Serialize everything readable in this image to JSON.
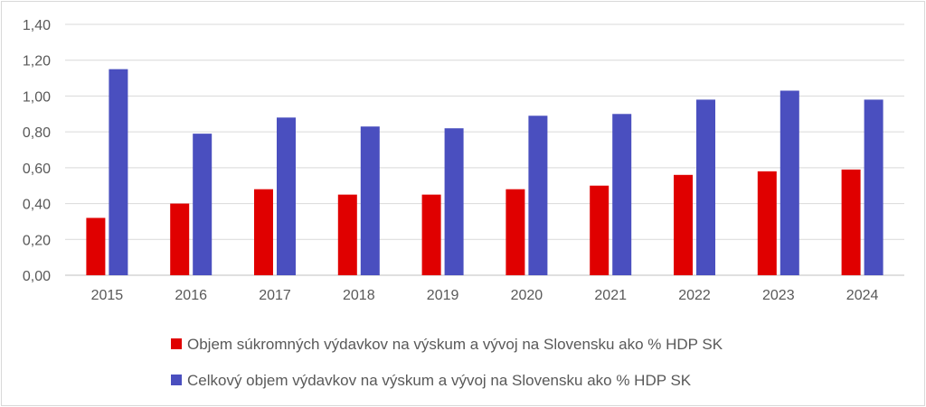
{
  "chart_data": {
    "type": "bar",
    "title": "",
    "xlabel": "",
    "ylabel": "",
    "categories": [
      "2015",
      "2016",
      "2017",
      "2018",
      "2019",
      "2020",
      "2021",
      "2022",
      "2023",
      "2024"
    ],
    "series": [
      {
        "name": "Objem súkromných výdavkov na výskum a vývoj na Slovensku ako % HDP SK",
        "color": "#e00000",
        "values": [
          0.32,
          0.4,
          0.48,
          0.45,
          0.45,
          0.48,
          0.5,
          0.56,
          0.58,
          0.59
        ]
      },
      {
        "name": "Celkový objem výdavkov na výskum a vývoj na Slovensku ako % HDP SK",
        "color": "#4a4fbf",
        "values": [
          1.15,
          0.79,
          0.88,
          0.83,
          0.82,
          0.89,
          0.9,
          0.98,
          1.03,
          0.98
        ]
      }
    ],
    "ylim": [
      0,
      1.4
    ],
    "yticks": [
      "0,00",
      "0,20",
      "0,40",
      "0,60",
      "0,80",
      "1,00",
      "1,20",
      "1,40"
    ],
    "grid": true,
    "legend_position": "bottom"
  }
}
